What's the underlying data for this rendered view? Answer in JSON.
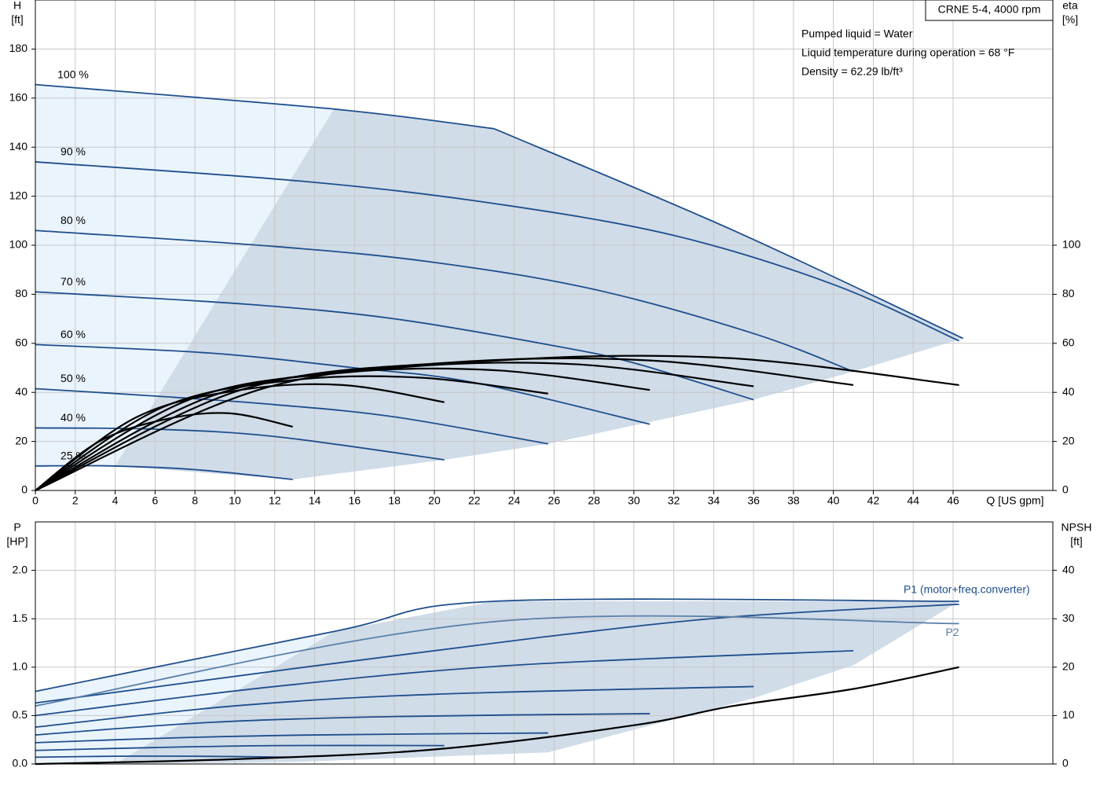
{
  "chart_data": [
    {
      "type": "line",
      "title": "CRNE 5-4, 4000 rpm",
      "notes": [
        "Pumped liquid = Water",
        "Liquid temperature during operation = 68 °F",
        "Density = 62.29 lb/ft³"
      ],
      "y_label": "H",
      "y_unit": "[ft]",
      "y2_label": "eta",
      "y2_unit": "[%]",
      "x_label": "Q [US gpm]",
      "xlim": [
        0,
        51
      ],
      "xticks": [
        0,
        2,
        4,
        6,
        8,
        10,
        12,
        14,
        16,
        18,
        20,
        22,
        24,
        26,
        28,
        30,
        32,
        34,
        36,
        38,
        40,
        42,
        44,
        46
      ],
      "ylim": [
        0,
        200
      ],
      "yticks": [
        0,
        20,
        40,
        60,
        80,
        100,
        120,
        140,
        160,
        180
      ],
      "y2lim": [
        0,
        200
      ],
      "y2ticks": [
        0,
        20,
        40,
        60,
        80,
        100
      ],
      "grid": true,
      "areas": [
        {
          "color": "#eaf4fc",
          "x": [
            0,
            15,
            4,
            0
          ],
          "values": [
            165.5,
            156,
            10,
            10
          ]
        },
        {
          "color": "#d0dce8",
          "x": [
            4,
            15,
            23,
            35,
            46.5,
            41,
            36,
            25.7,
            20.5,
            12.9
          ],
          "values": [
            10,
            156,
            147.5,
            106,
            62,
            48.5,
            37,
            19,
            12.5,
            4.5
          ]
        }
      ],
      "series": [
        {
          "name": "100 %",
          "color": "#1f4e8c",
          "x": [
            0,
            15,
            23
          ],
          "values": [
            165.5,
            155.5,
            147.5
          ]
        },
        {
          "name": "90 %",
          "color": "#1f4e8c",
          "x": [
            0,
            13.5,
            23,
            32,
            40,
            46.3
          ],
          "values": [
            134,
            126,
            117,
            104,
            84,
            61
          ]
        },
        {
          "name": "80 %",
          "color": "#1f4e8c",
          "x": [
            0,
            12,
            20,
            28,
            36,
            41
          ],
          "values": [
            106,
            99.5,
            93,
            82,
            64,
            48.5
          ]
        },
        {
          "name": "70 %",
          "color": "#1f4e8c",
          "x": [
            0,
            10.5,
            18,
            26,
            30,
            36
          ],
          "values": [
            81,
            76,
            70,
            59,
            52,
            37
          ]
        },
        {
          "name": "60 %",
          "color": "#1f4e8c",
          "x": [
            0,
            8.8,
            16,
            22,
            30.8
          ],
          "values": [
            59.5,
            56,
            50,
            44,
            27
          ]
        },
        {
          "name": "50 %",
          "color": "#1f4e8c",
          "x": [
            0,
            6,
            12,
            18,
            25.7
          ],
          "values": [
            41.5,
            38.5,
            35,
            30,
            19
          ]
        },
        {
          "name": "40 %",
          "color": "#1f4e8c",
          "x": [
            0,
            6,
            12,
            20.5
          ],
          "values": [
            25.5,
            25,
            22,
            12.5
          ]
        },
        {
          "name": "25 %",
          "color": "#1f4e8c",
          "x": [
            0,
            3.8,
            8,
            12.9
          ],
          "values": [
            10,
            10,
            8.5,
            4.5
          ]
        },
        {
          "color": "#1f4e8c",
          "x": [
            23,
            35,
            46.5
          ],
          "values": [
            147.5,
            106,
            62
          ]
        },
        {
          "axis": "y2",
          "color": "#000000",
          "x": [
            0,
            11.6,
            23.2,
            34.7,
            46.3
          ],
          "values": [
            0,
            42,
            53,
            54,
            43
          ]
        },
        {
          "axis": "y2",
          "color": "#000000",
          "x": [
            0,
            10.3,
            20.5,
            30.8,
            41
          ],
          "values": [
            0,
            41,
            52,
            53,
            43
          ]
        },
        {
          "axis": "y2",
          "color": "#000000",
          "x": [
            0,
            9,
            18,
            27,
            36
          ],
          "values": [
            0,
            39,
            50,
            51.5,
            42.5
          ]
        },
        {
          "axis": "y2",
          "color": "#000000",
          "x": [
            0,
            7.7,
            15.4,
            23.1,
            30.8
          ],
          "values": [
            0,
            37,
            48,
            49,
            41
          ]
        },
        {
          "axis": "y2",
          "color": "#000000",
          "x": [
            0,
            6.4,
            12.9,
            19.3,
            25.7
          ],
          "values": [
            0,
            34,
            45,
            46,
            39.5
          ]
        },
        {
          "axis": "y2",
          "color": "#000000",
          "x": [
            0,
            5.1,
            10.3,
            15.4,
            20.5
          ],
          "values": [
            0,
            30,
            41,
            43,
            36
          ]
        },
        {
          "axis": "y2",
          "color": "#000000",
          "x": [
            0,
            3.2,
            6.5,
            9.7,
            12.9
          ],
          "values": [
            0,
            20,
            29,
            31.5,
            26
          ]
        }
      ]
    },
    {
      "type": "line",
      "y_label": "P",
      "y_unit": "[HP]",
      "y2_label": "NPSH",
      "y2_unit": "[ft]",
      "xlim": [
        0,
        51
      ],
      "ylim": [
        0,
        2.5
      ],
      "yticks": [
        {
          "value": 0,
          "label": "0.0"
        },
        0.5,
        {
          "value": 1,
          "label": "1.0"
        },
        1.5,
        {
          "value": 2,
          "label": "2.0"
        }
      ],
      "y2lim": [
        0,
        50
      ],
      "y2ticks": [
        0,
        10,
        20,
        30,
        40
      ],
      "grid": true,
      "areas": [
        {
          "color": "#eaf4fc",
          "x": [
            0,
            15,
            4,
            0
          ],
          "values": [
            0.75,
            1.37,
            0,
            0
          ]
        },
        {
          "color": "#d0dce8",
          "x": [
            4,
            15,
            23,
            46.3,
            41,
            36,
            25.7,
            12.9
          ],
          "values": [
            0,
            1.37,
            1.68,
            1.68,
            1.02,
            0.68,
            0.12,
            0.02
          ]
        }
      ],
      "series": [
        {
          "name": "P1 (motor+freq.converter)",
          "color": "#1f4e8c",
          "x": [
            0,
            15,
            23,
            46.3
          ],
          "values": [
            0.75,
            1.37,
            1.68,
            1.68
          ]
        },
        {
          "color": "#1f4e8c",
          "x": [
            0,
            13.5,
            25,
            35,
            46.3
          ],
          "values": [
            0.63,
            1.0,
            1.3,
            1.52,
            1.65
          ]
        },
        {
          "color": "#1f4e8c",
          "x": [
            0,
            12,
            24,
            41
          ],
          "values": [
            0.5,
            0.8,
            1.02,
            1.17
          ]
        },
        {
          "color": "#1f4e8c",
          "x": [
            0,
            10,
            20,
            36
          ],
          "values": [
            0.38,
            0.6,
            0.72,
            0.8
          ]
        },
        {
          "color": "#1f4e8c",
          "x": [
            0,
            8.8,
            18,
            30.8
          ],
          "values": [
            0.3,
            0.43,
            0.49,
            0.52
          ]
        },
        {
          "color": "#1f4e8c",
          "x": [
            0,
            7,
            14,
            25.7
          ],
          "values": [
            0.22,
            0.27,
            0.3,
            0.32
          ]
        },
        {
          "color": "#1f4e8c",
          "x": [
            0,
            6,
            12,
            20.5
          ],
          "values": [
            0.14,
            0.17,
            0.19,
            0.19
          ]
        },
        {
          "color": "#1f4e8c",
          "x": [
            0,
            4,
            8,
            12.9
          ],
          "values": [
            0.07,
            0.08,
            0.08,
            0.07
          ]
        },
        {
          "name": "P2",
          "color": "#5a7fa8",
          "x": [
            0,
            23,
            46.3
          ],
          "values": [
            0.6,
            1.47,
            1.45
          ]
        },
        {
          "axis": "y2",
          "color": "#000000",
          "x": [
            0,
            10,
            20,
            30,
            35,
            41,
            46.3
          ],
          "values": [
            0,
            1,
            3,
            8,
            12,
            15.5,
            20
          ]
        }
      ]
    }
  ]
}
